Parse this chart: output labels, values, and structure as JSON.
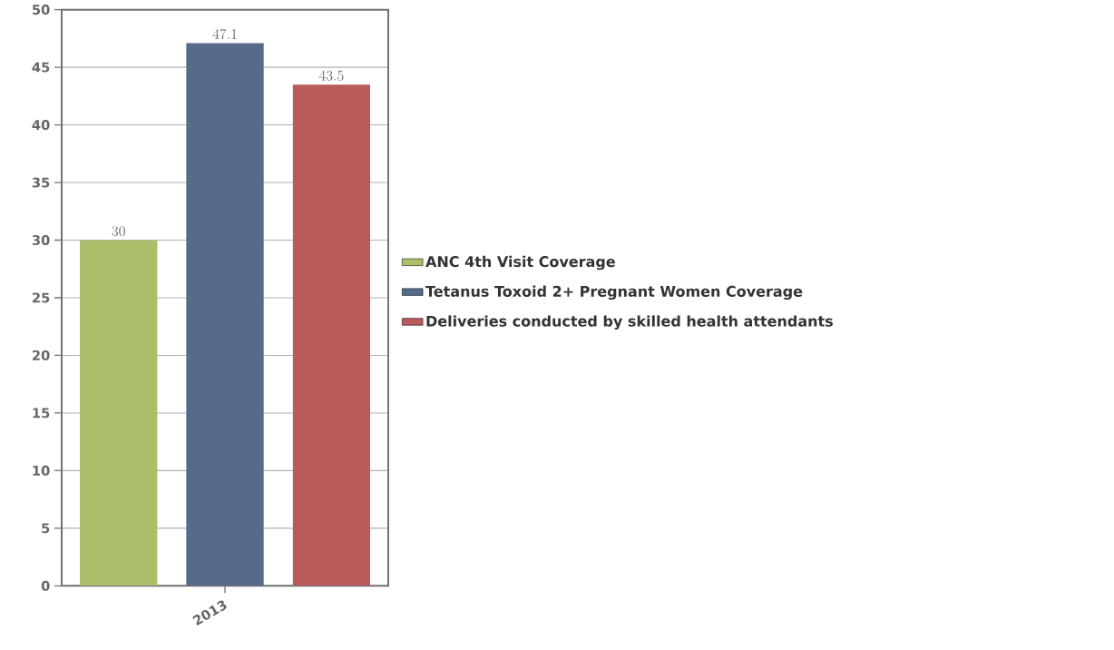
{
  "chart_data": {
    "type": "bar",
    "categories": [
      "2013"
    ],
    "series": [
      {
        "name": "ANC 4th Visit Coverage",
        "color": "#abbf6b",
        "values": [
          30
        ]
      },
      {
        "name": "Tetanus Toxoid 2+ Pregnant Women Coverage",
        "color": "#566b8a",
        "values": [
          47.1
        ]
      },
      {
        "name": "Deliveries conducted by skilled health attendants",
        "color": "#b95a5b",
        "values": [
          43.5
        ]
      }
    ],
    "ylim": [
      0,
      50
    ],
    "yticks": [
      0,
      5,
      10,
      15,
      20,
      25,
      30,
      35,
      40,
      45,
      50
    ],
    "grid": "y",
    "legend": "right",
    "data_labels": true
  }
}
